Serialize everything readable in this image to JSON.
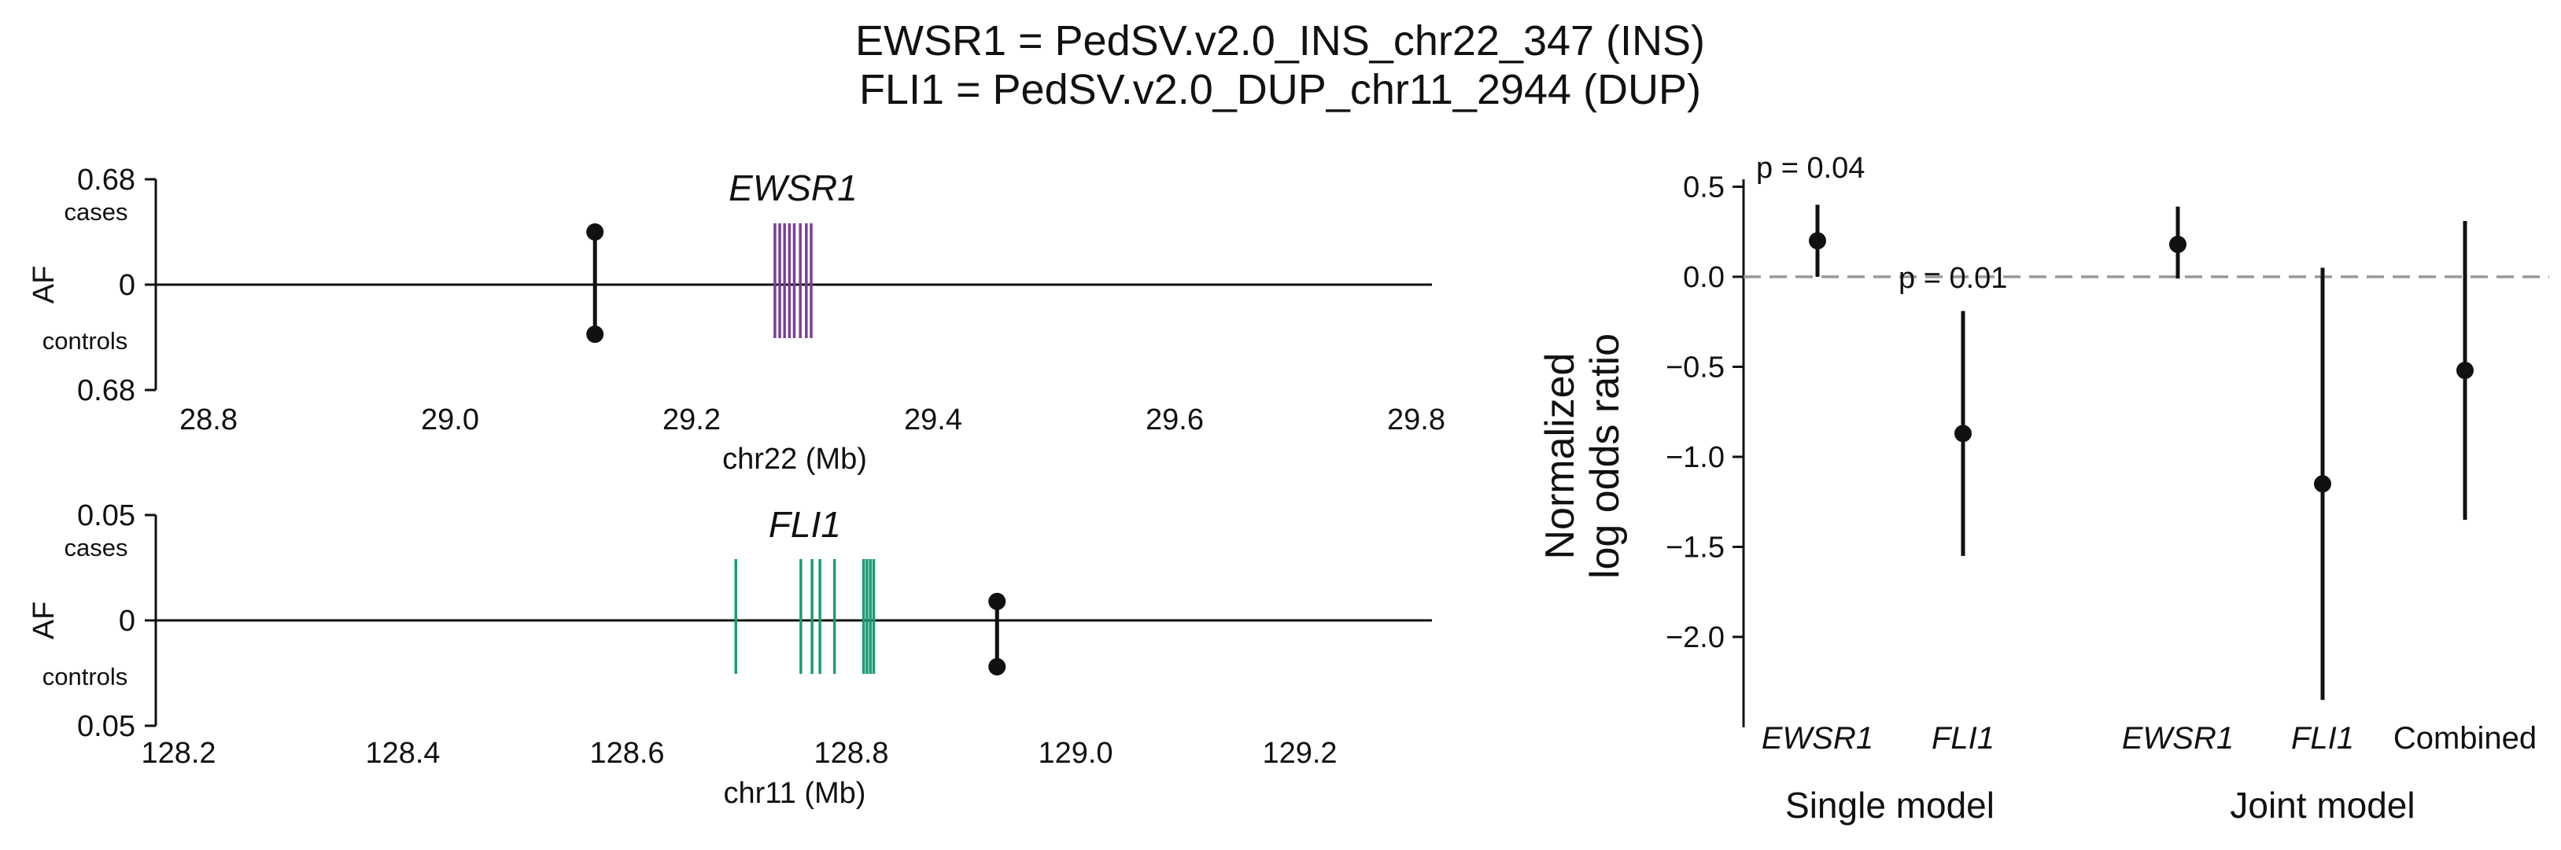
{
  "title_lines": [
    "EWSR1 = PedSV.v2.0_INS_chr22_347 (INS)",
    "FLI1 = PedSV.v2.0_DUP_chr11_2944 (DUP)"
  ],
  "chart_data": [
    {
      "type": "scatter",
      "panel": "locus",
      "gene": "EWSR1",
      "gene_color": "#7b3f98",
      "xlabel": "chr22 (Mb)",
      "ylabel": "AF",
      "xlim": [
        28.75,
        29.82
      ],
      "xticks": [
        "28.8",
        "29.0",
        "29.2",
        "29.4",
        "29.6",
        "29.8"
      ],
      "ytick_top": "0.68",
      "ytick_mid": "0",
      "ytick_bottom": "0.68",
      "cases_label": "cases",
      "controls_label": "controls",
      "variant": {
        "pos_mb": 29.12,
        "af_cases": 0.34,
        "af_controls": 0.32
      },
      "af_max": 0.68,
      "exons_mb": [
        29.269,
        29.273,
        29.277,
        29.281,
        29.285,
        29.29,
        29.295,
        29.299
      ]
    },
    {
      "type": "scatter",
      "panel": "locus",
      "gene": "FLI1",
      "gene_color": "#1a9b75",
      "xlabel": "chr11 (Mb)",
      "ylabel": "AF",
      "xlim": [
        128.2,
        129.35
      ],
      "xticks": [
        "128.2",
        "128.4",
        "128.6",
        "128.8",
        "129.0",
        "129.2"
      ],
      "ytick_top": "0.05",
      "ytick_mid": "0",
      "ytick_bottom": "0.05",
      "cases_label": "cases",
      "controls_label": "controls",
      "variant": {
        "pos_mb": 128.93,
        "af_cases": 0.009,
        "af_controls": 0.022
      },
      "af_max": 0.05,
      "exons_mb": [
        128.697,
        128.755,
        128.765,
        128.772,
        128.785,
        128.811,
        128.814,
        128.817,
        128.82
      ]
    },
    {
      "type": "scatter",
      "panel": "forest",
      "ylabel_lines": [
        "Normalized",
        "log odds ratio"
      ],
      "ylim": [
        -2.45,
        0.6
      ],
      "yticks": [
        "0.5",
        "0.0",
        "-0.5",
        "-1.0",
        "-1.5",
        "-2.0"
      ],
      "categories": [
        "EWSR1",
        "FLI1",
        "EWSR1",
        "FLI1",
        "Combined"
      ],
      "groups": [
        "Single model",
        "Joint model"
      ],
      "estimates": [
        {
          "label": "EWSR1",
          "value": 0.2,
          "lo": 0.0,
          "hi": 0.4
        },
        {
          "label": "FLI1",
          "value": -0.87,
          "lo": -1.55,
          "hi": -0.19
        },
        {
          "label": "EWSR1",
          "value": 0.18,
          "lo": -0.01,
          "hi": 0.39
        },
        {
          "label": "FLI1",
          "value": -1.15,
          "lo": -2.35,
          "hi": 0.05
        },
        {
          "label": "Combined",
          "value": -0.52,
          "lo": -1.35,
          "hi": 0.31
        }
      ],
      "pvalues": [
        "p = 0.04",
        "p = 0.01"
      ],
      "refline": 0.0
    }
  ]
}
